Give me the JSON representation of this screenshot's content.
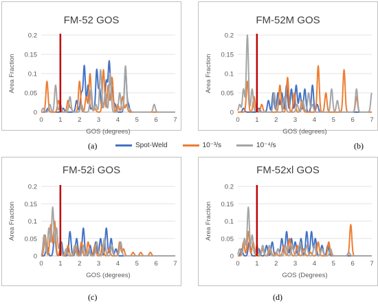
{
  "figure": {
    "sub_labels": [
      "(a)",
      "(b)",
      "(c)",
      "(d)"
    ]
  },
  "colors": {
    "spot_weld": "#4472c4",
    "rate_1e3": "#ed7d31",
    "rate_1e4": "#a5a5a5",
    "marker": "#c00000"
  },
  "legend": {
    "placement": "bottom-center",
    "entries": [
      "Spot-Weld",
      "10⁻³/s",
      "10⁻⁴/s"
    ]
  },
  "chart_data": [
    {
      "type": "line",
      "title": "FM-52 GOS",
      "xlabel": "GOS (degrees)",
      "ylabel": "Area Fraction",
      "xlim": [
        0,
        7
      ],
      "ylim": [
        0,
        0.2
      ],
      "x_ticks": [
        "0",
        "1",
        "2",
        "3",
        "4",
        "5",
        "6",
        "7"
      ],
      "y_ticks": [
        "0",
        "0.05",
        "0.1",
        "0.15",
        "0.2"
      ],
      "grid": true,
      "vline": 1,
      "series": [
        {
          "name": "Spot-Weld",
          "peaks": [
            [
              0.35,
              0.01
            ],
            [
              1.15,
              0.01
            ],
            [
              1.85,
              0.03
            ],
            [
              2.1,
              0.05
            ],
            [
              2.25,
              0.12
            ],
            [
              2.45,
              0.07
            ],
            [
              2.65,
              0.01
            ],
            [
              2.9,
              0.11
            ],
            [
              3.05,
              0.06
            ],
            [
              3.25,
              0.02
            ],
            [
              3.4,
              0.08
            ],
            [
              3.55,
              0.13
            ],
            [
              3.7,
              0.06
            ],
            [
              3.85,
              0.02
            ],
            [
              4.4,
              0.11
            ],
            [
              4.55,
              0.02
            ]
          ]
        },
        {
          "name": "10⁻³/s",
          "peaks": [
            [
              0.3,
              0.08
            ],
            [
              0.9,
              0.03
            ],
            [
              1.4,
              0.03
            ],
            [
              1.55,
              0.01
            ],
            [
              2.0,
              0.08
            ],
            [
              2.35,
              0.04
            ],
            [
              2.55,
              0.1
            ],
            [
              2.8,
              0.01
            ],
            [
              3.25,
              0.11
            ],
            [
              3.5,
              0.07
            ],
            [
              3.7,
              0.09
            ],
            [
              4.0,
              0.02
            ],
            [
              4.25,
              0.04
            ],
            [
              4.45,
              0.02
            ]
          ]
        },
        {
          "name": "10⁻⁴/s",
          "peaks": [
            [
              0.1,
              0.01
            ],
            [
              0.45,
              0.02
            ],
            [
              0.75,
              0.07
            ],
            [
              1.0,
              0.02
            ],
            [
              1.5,
              0.04
            ],
            [
              2.1,
              0.02
            ],
            [
              2.6,
              0.06
            ],
            [
              2.85,
              0.02
            ],
            [
              3.1,
              0.11
            ],
            [
              3.35,
              0.05
            ],
            [
              3.6,
              0.1
            ],
            [
              4.1,
              0.05
            ],
            [
              4.4,
              0.12
            ],
            [
              4.6,
              0.01
            ],
            [
              5.9,
              0.02
            ]
          ]
        }
      ]
    },
    {
      "type": "line",
      "title": "FM-52M GOS",
      "xlabel": "GOS (degrees)",
      "ylabel": "Area Fraction",
      "xlim": [
        0,
        7
      ],
      "ylim": [
        0,
        0.2
      ],
      "x_ticks": [
        "0",
        "1",
        "2",
        "3",
        "4",
        "5",
        "6",
        "7"
      ],
      "y_ticks": [
        "0",
        "0.05",
        "0.1",
        "0.15",
        "0.2"
      ],
      "grid": true,
      "vline": 1,
      "series": [
        {
          "name": "Spot-Weld",
          "peaks": [
            [
              0.3,
              0.01
            ],
            [
              1.1,
              0.01
            ],
            [
              1.6,
              0.03
            ],
            [
              1.85,
              0.05
            ],
            [
              2.1,
              0.05
            ],
            [
              2.3,
              0.05
            ],
            [
              2.55,
              0.07
            ],
            [
              2.8,
              0.06
            ],
            [
              3.05,
              0.07
            ],
            [
              3.25,
              0.05
            ],
            [
              3.5,
              0.06
            ],
            [
              3.9,
              0.07
            ],
            [
              4.15,
              0.02
            ]
          ]
        },
        {
          "name": "10⁻³/s",
          "peaks": [
            [
              0.5,
              0.08
            ],
            [
              0.85,
              0.04
            ],
            [
              1.25,
              0.02
            ],
            [
              2.2,
              0.07
            ],
            [
              2.6,
              0.09
            ],
            [
              2.95,
              0.05
            ],
            [
              3.35,
              0.03
            ],
            [
              4.2,
              0.12
            ],
            [
              4.6,
              0.05
            ],
            [
              5.55,
              0.11
            ],
            [
              6.2,
              0.04
            ]
          ]
        },
        {
          "name": "10⁻⁴/s",
          "peaks": [
            [
              0.1,
              0.02
            ],
            [
              0.3,
              0.06
            ],
            [
              0.5,
              0.2
            ],
            [
              0.75,
              0.06
            ],
            [
              1.0,
              0.01
            ],
            [
              1.9,
              0.05
            ],
            [
              2.45,
              0.04
            ],
            [
              3.1,
              0.02
            ],
            [
              3.4,
              0.03
            ],
            [
              3.7,
              0.05
            ],
            [
              3.9,
              0.02
            ],
            [
              4.9,
              0.06
            ],
            [
              5.2,
              0.03
            ],
            [
              6.2,
              0.06
            ],
            [
              7.0,
              0.05
            ]
          ]
        }
      ]
    },
    {
      "type": "line",
      "title": "FM-52i GOS",
      "xlabel": "GOS (degrees)",
      "ylabel": "Area Fraction",
      "xlim": [
        0,
        7
      ],
      "ylim": [
        0,
        0.2
      ],
      "x_ticks": [
        "0",
        "1",
        "2",
        "3",
        "4",
        "5",
        "6",
        "7"
      ],
      "y_ticks": [
        "0",
        "0.05",
        "0.1",
        "0.15",
        "0.2"
      ],
      "grid": true,
      "vline": 1,
      "series": [
        {
          "name": "Spot-Weld",
          "peaks": [
            [
              0.3,
              0.03
            ],
            [
              0.7,
              0.06
            ],
            [
              1.05,
              0.04
            ],
            [
              1.5,
              0.07
            ],
            [
              1.85,
              0.05
            ],
            [
              2.2,
              0.08
            ],
            [
              2.55,
              0.03
            ],
            [
              2.85,
              0.04
            ],
            [
              3.1,
              0.05
            ],
            [
              3.4,
              0.08
            ],
            [
              3.65,
              0.05
            ],
            [
              3.9,
              0.02
            ]
          ]
        },
        {
          "name": "10⁻³/s",
          "peaks": [
            [
              0.2,
              0.06
            ],
            [
              0.5,
              0.09
            ],
            [
              0.7,
              0.1
            ],
            [
              1.0,
              0.02
            ],
            [
              1.4,
              0.03
            ],
            [
              1.8,
              0.03
            ],
            [
              2.1,
              0.04
            ],
            [
              2.45,
              0.04
            ],
            [
              2.8,
              0.03
            ],
            [
              3.2,
              0.03
            ],
            [
              3.55,
              0.02
            ],
            [
              4.1,
              0.04
            ],
            [
              4.3,
              0.02
            ],
            [
              4.8,
              0.01
            ],
            [
              5.2,
              0.01
            ],
            [
              5.7,
              0.01
            ]
          ]
        },
        {
          "name": "10⁻⁴/s",
          "peaks": [
            [
              0.15,
              0.06
            ],
            [
              0.4,
              0.08
            ],
            [
              0.6,
              0.14
            ],
            [
              0.8,
              0.08
            ],
            [
              1.0,
              0.04
            ],
            [
              1.3,
              0.02
            ],
            [
              1.75,
              0.03
            ],
            [
              2.2,
              0.03
            ],
            [
              2.5,
              0.02
            ],
            [
              2.9,
              0.04
            ],
            [
              3.3,
              0.05
            ],
            [
              3.7,
              0.03
            ],
            [
              4.15,
              0.04
            ]
          ]
        }
      ]
    },
    {
      "type": "line",
      "title": "FM-52xl GOS",
      "xlabel": "GOS (Degrees)",
      "ylabel": "Area Fraction",
      "xlim": [
        0,
        7
      ],
      "ylim": [
        0,
        0.2
      ],
      "x_ticks": [
        "0",
        "1",
        "2",
        "3",
        "4",
        "5",
        "6",
        "7"
      ],
      "y_ticks": [
        "0",
        "0.05",
        "0.1",
        "0.15",
        "0.2"
      ],
      "grid": true,
      "vline": 1,
      "series": [
        {
          "name": "Spot-Weld",
          "peaks": [
            [
              0.2,
              0.02
            ],
            [
              0.6,
              0.04
            ],
            [
              1.1,
              0.02
            ],
            [
              1.5,
              0.03
            ],
            [
              1.8,
              0.04
            ],
            [
              2.1,
              0.02
            ],
            [
              2.3,
              0.05
            ],
            [
              2.55,
              0.07
            ],
            [
              2.8,
              0.05
            ],
            [
              3.0,
              0.04
            ],
            [
              3.3,
              0.05
            ],
            [
              3.6,
              0.07
            ],
            [
              3.85,
              0.07
            ],
            [
              4.05,
              0.05
            ],
            [
              4.4,
              0.03
            ],
            [
              4.7,
              0.03
            ]
          ]
        },
        {
          "name": "10⁻³/s",
          "peaks": [
            [
              0.3,
              0.04
            ],
            [
              0.55,
              0.07
            ],
            [
              0.8,
              0.04
            ],
            [
              1.3,
              0.02
            ],
            [
              1.7,
              0.02
            ],
            [
              2.0,
              0.01
            ],
            [
              2.4,
              0.03
            ],
            [
              2.7,
              0.05
            ],
            [
              3.1,
              0.03
            ],
            [
              3.45,
              0.02
            ],
            [
              3.8,
              0.01
            ],
            [
              4.2,
              0.04
            ],
            [
              4.75,
              0.04
            ],
            [
              5.9,
              0.09
            ]
          ]
        },
        {
          "name": "10⁻⁴/s",
          "peaks": [
            [
              0.1,
              0.02
            ],
            [
              0.35,
              0.05
            ],
            [
              0.55,
              0.14
            ],
            [
              0.75,
              0.06
            ],
            [
              1.0,
              0.03
            ],
            [
              1.3,
              0.03
            ],
            [
              1.65,
              0.03
            ],
            [
              2.1,
              0.02
            ],
            [
              2.5,
              0.03
            ],
            [
              2.85,
              0.03
            ],
            [
              3.25,
              0.04
            ],
            [
              3.6,
              0.03
            ],
            [
              4.0,
              0.03
            ],
            [
              4.4,
              0.02
            ],
            [
              4.85,
              0.02
            ],
            [
              5.8,
              0.01
            ]
          ]
        }
      ]
    }
  ]
}
